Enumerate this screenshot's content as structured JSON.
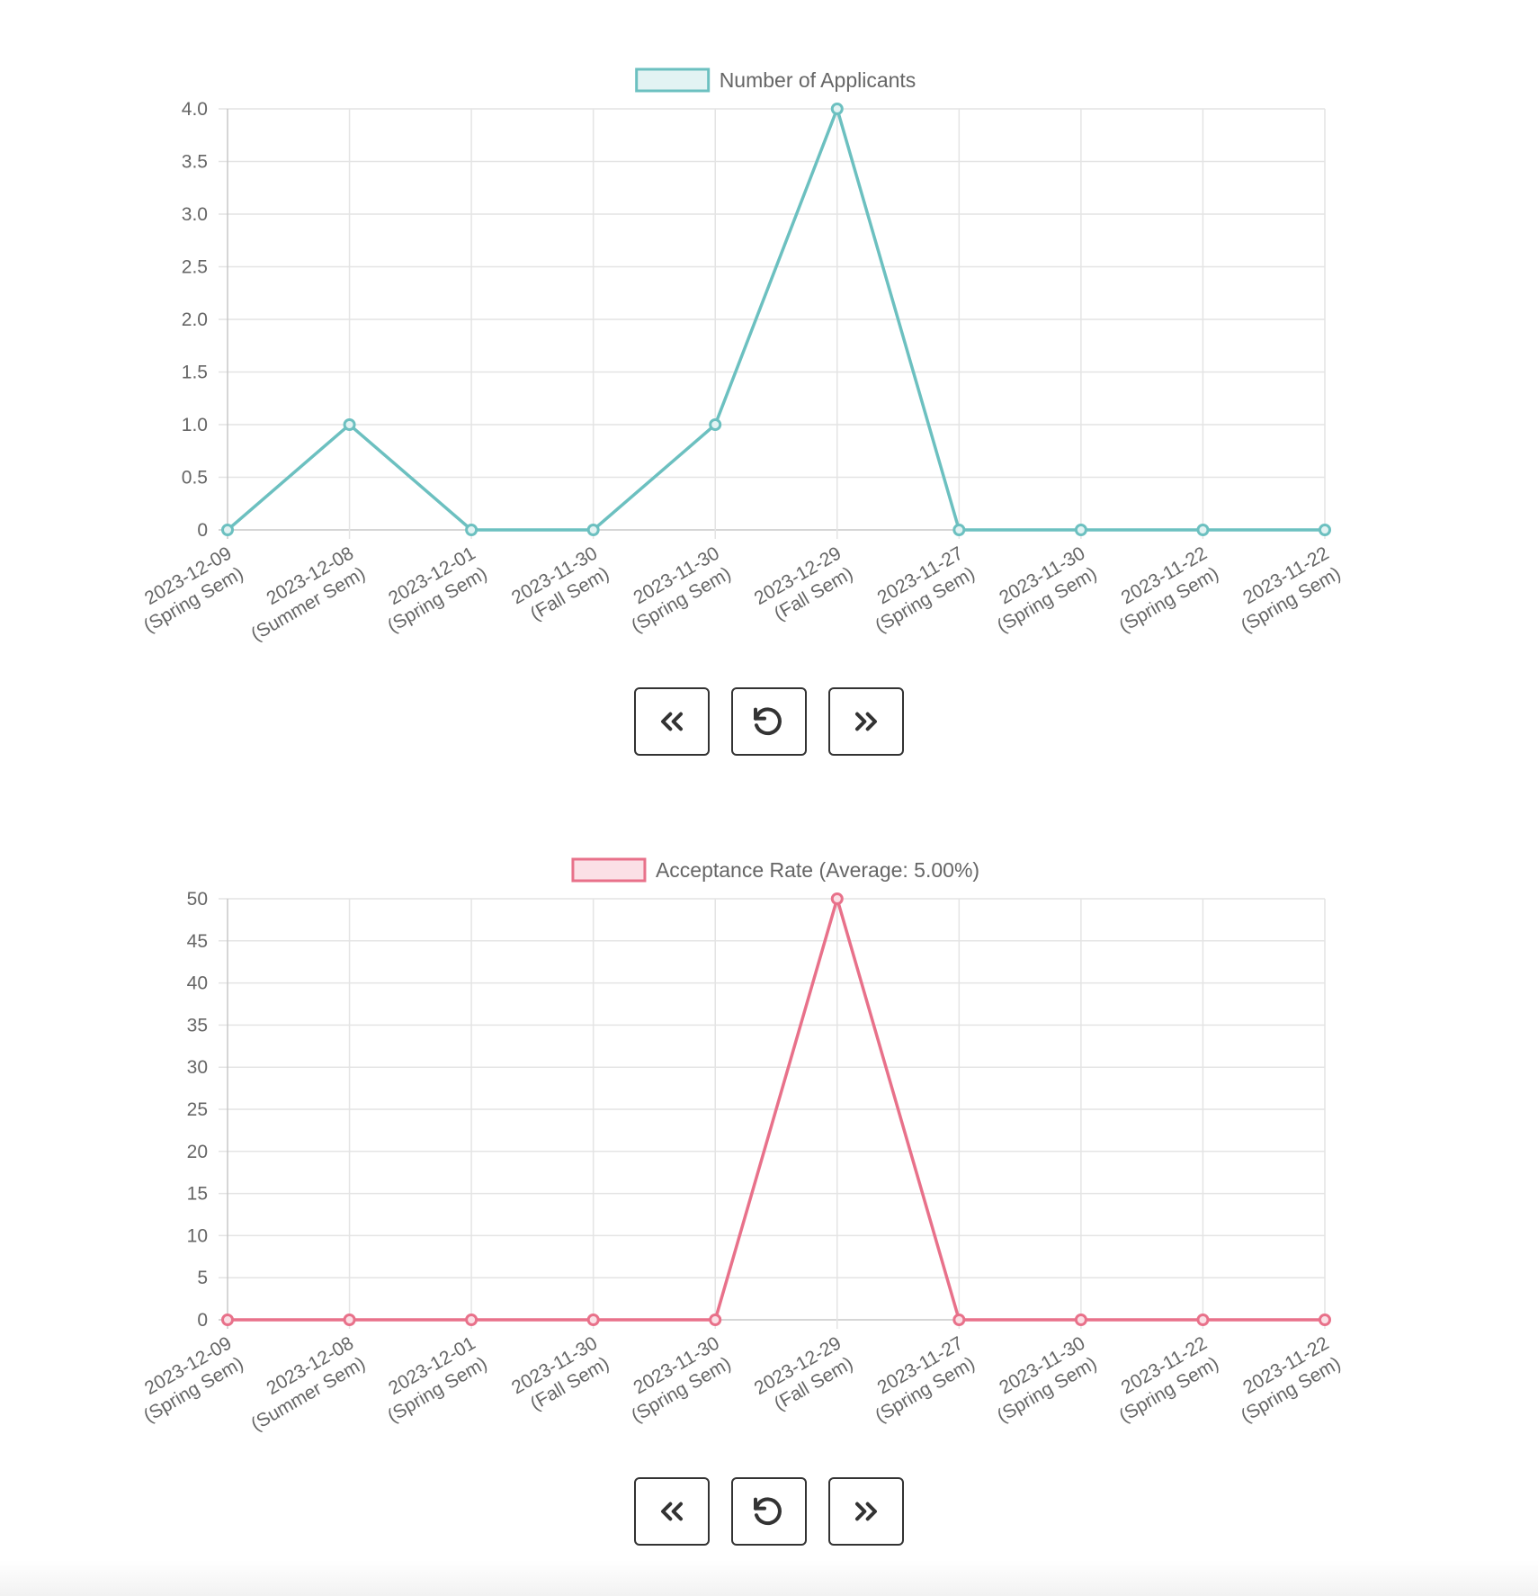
{
  "chart_data": [
    {
      "type": "line",
      "legend": "Number of Applicants",
      "legend_position": "top-center",
      "color": "#6cc0c0",
      "fill_color": "#e2f3f3",
      "x": [
        [
          "2023-12-09",
          "(Spring Sem)"
        ],
        [
          "2023-12-08",
          "(Summer Sem)"
        ],
        [
          "2023-12-01",
          "(Spring Sem)"
        ],
        [
          "2023-11-30",
          "(Fall Sem)"
        ],
        [
          "2023-11-30",
          "(Spring Sem)"
        ],
        [
          "2023-12-29",
          "(Fall Sem)"
        ],
        [
          "2023-11-27",
          "(Spring Sem)"
        ],
        [
          "2023-11-30",
          "(Spring Sem)"
        ],
        [
          "2023-11-22",
          "(Spring Sem)"
        ],
        [
          "2023-11-22",
          "(Spring Sem)"
        ]
      ],
      "values": [
        0,
        1,
        0,
        0,
        1,
        4,
        0,
        0,
        0,
        0
      ],
      "ylim": [
        0,
        4
      ],
      "yticks": [
        "0",
        "0.5",
        "1.0",
        "1.5",
        "2.0",
        "2.5",
        "3.0",
        "3.5",
        "4.0"
      ],
      "grid": true
    },
    {
      "type": "line",
      "legend": "Acceptance Rate (Average: 5.00%)",
      "legend_position": "top-center",
      "color": "#e8718a",
      "fill_color": "#fbe0e6",
      "x": [
        [
          "2023-12-09",
          "(Spring Sem)"
        ],
        [
          "2023-12-08",
          "(Summer Sem)"
        ],
        [
          "2023-12-01",
          "(Spring Sem)"
        ],
        [
          "2023-11-30",
          "(Fall Sem)"
        ],
        [
          "2023-11-30",
          "(Spring Sem)"
        ],
        [
          "2023-12-29",
          "(Fall Sem)"
        ],
        [
          "2023-11-27",
          "(Spring Sem)"
        ],
        [
          "2023-11-30",
          "(Spring Sem)"
        ],
        [
          "2023-11-22",
          "(Spring Sem)"
        ],
        [
          "2023-11-22",
          "(Spring Sem)"
        ]
      ],
      "values": [
        0,
        0,
        0,
        0,
        0,
        50,
        0,
        0,
        0,
        0
      ],
      "ylim": [
        0,
        50
      ],
      "yticks": [
        "0",
        "5",
        "10",
        "15",
        "20",
        "25",
        "30",
        "35",
        "40",
        "45",
        "50"
      ],
      "grid": true
    }
  ],
  "controls": {
    "prev_icon": "double-chevron-left-icon",
    "reset_icon": "rotate-ccw-icon",
    "next_icon": "double-chevron-right-icon"
  }
}
